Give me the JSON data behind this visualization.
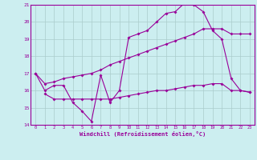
{
  "xlabel": "Windchill (Refroidissement éolien,°C)",
  "bg_color": "#cceef0",
  "grid_color": "#aacccc",
  "line_color": "#990099",
  "axis_color": "#990099",
  "text_color": "#990099",
  "xlim": [
    -0.5,
    23.5
  ],
  "ylim": [
    14,
    21
  ],
  "yticks": [
    14,
    15,
    16,
    17,
    18,
    19,
    20,
    21
  ],
  "xticks": [
    0,
    1,
    2,
    3,
    4,
    5,
    6,
    7,
    8,
    9,
    10,
    11,
    12,
    13,
    14,
    15,
    16,
    17,
    18,
    19,
    20,
    21,
    22,
    23
  ],
  "line1_x": [
    0,
    1,
    2,
    3,
    4,
    5,
    6,
    7,
    8,
    9,
    10,
    11,
    12,
    13,
    14,
    15,
    16,
    17,
    18,
    19,
    20,
    21,
    22,
    23
  ],
  "line1_y": [
    17.0,
    16.0,
    16.3,
    16.3,
    15.3,
    14.8,
    14.2,
    16.9,
    15.3,
    16.0,
    19.1,
    19.3,
    19.5,
    20.0,
    20.5,
    20.6,
    21.1,
    21.0,
    20.6,
    19.5,
    19.0,
    16.7,
    16.0,
    15.9
  ],
  "line2_x": [
    0,
    1,
    2,
    3,
    4,
    5,
    6,
    7,
    8,
    9,
    10,
    11,
    12,
    13,
    14,
    15,
    16,
    17,
    18,
    19,
    20,
    21,
    22,
    23
  ],
  "line2_y": [
    17.0,
    16.4,
    16.5,
    16.7,
    16.8,
    16.9,
    17.0,
    17.2,
    17.5,
    17.7,
    17.9,
    18.1,
    18.3,
    18.5,
    18.7,
    18.9,
    19.1,
    19.3,
    19.6,
    19.6,
    19.6,
    19.3,
    19.3,
    19.3
  ],
  "line3_x": [
    1,
    2,
    3,
    4,
    5,
    6,
    7,
    8,
    9,
    10,
    11,
    12,
    13,
    14,
    15,
    16,
    17,
    18,
    19,
    20,
    21,
    22,
    23
  ],
  "line3_y": [
    15.8,
    15.5,
    15.5,
    15.5,
    15.5,
    15.5,
    15.5,
    15.5,
    15.6,
    15.7,
    15.8,
    15.9,
    16.0,
    16.0,
    16.1,
    16.2,
    16.3,
    16.3,
    16.4,
    16.4,
    16.0,
    16.0,
    15.9
  ]
}
